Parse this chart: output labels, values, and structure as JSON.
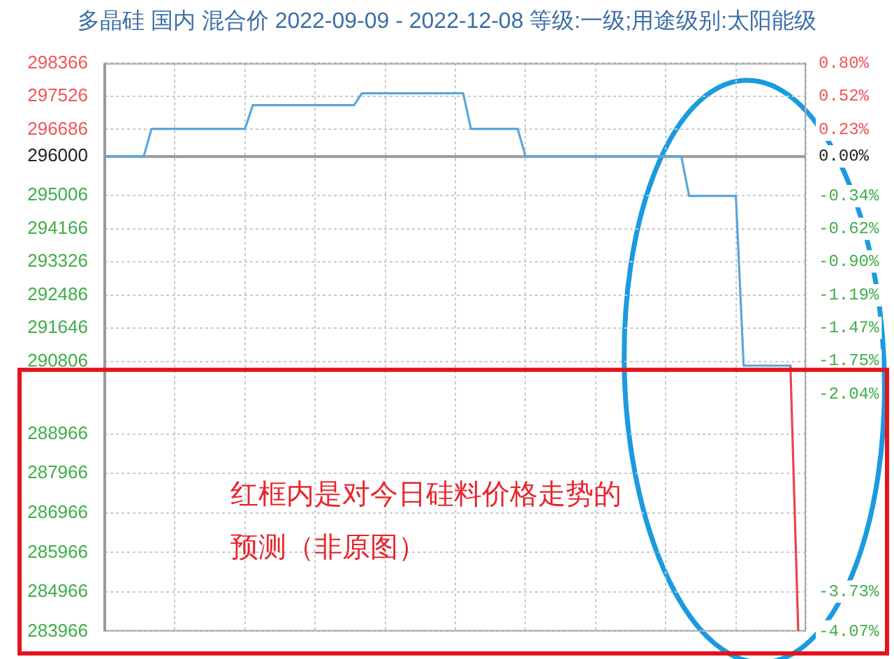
{
  "chart_data": {
    "type": "line",
    "title": "多晶硅 国内 混合价 2022-09-09 - 2022-12-08 等级:一级;用途级别:太阳能级",
    "categories": [
      null,
      null,
      null,
      null,
      null,
      null,
      null,
      null,
      null,
      null,
      null,
      null,
      null,
      null,
      null,
      null,
      null,
      null,
      null,
      null,
      null,
      null,
      null,
      null,
      null,
      null,
      null,
      null,
      null,
      null,
      null,
      null,
      null,
      null,
      null,
      null,
      null,
      null,
      null,
      null,
      null,
      null,
      null,
      null,
      null,
      null,
      null,
      null,
      null,
      null,
      null,
      null,
      null,
      null,
      null,
      null,
      null,
      null,
      null,
      null,
      null,
      null,
      null,
      null,
      null,
      null,
      null,
      null,
      null,
      null,
      null,
      null,
      null,
      null,
      null,
      null,
      null,
      null,
      null,
      null,
      null,
      null,
      null,
      null,
      null,
      null,
      null,
      null,
      null,
      null,
      null
    ],
    "series": [
      {
        "color": "#5aa6dc",
        "values": [
          296000,
          296000,
          296000,
          296000,
          296000,
          296000,
          296700,
          296700,
          296700,
          296700,
          296700,
          296700,
          296700,
          296700,
          296700,
          296700,
          296700,
          296700,
          296700,
          297300,
          297300,
          297300,
          297300,
          297300,
          297300,
          297300,
          297300,
          297300,
          297300,
          297300,
          297300,
          297300,
          297300,
          297600,
          297600,
          297600,
          297600,
          297600,
          297600,
          297600,
          297600,
          297600,
          297600,
          297600,
          297600,
          297600,
          297600,
          296700,
          296700,
          296700,
          296700,
          296700,
          296700,
          296700,
          296000,
          296000,
          296000,
          296000,
          296000,
          296000,
          296000,
          296000,
          296000,
          296000,
          296000,
          296000,
          296000,
          296000,
          296000,
          296000,
          296000,
          296000,
          296000,
          296000,
          296000,
          295000,
          295000,
          295000,
          295000,
          295000,
          295000,
          295000,
          290700,
          290700,
          290700,
          290700,
          290700,
          290700,
          290700,
          null,
          null
        ]
      },
      {
        "color": "#e8454a",
        "values": [
          null,
          null,
          null,
          null,
          null,
          null,
          null,
          null,
          null,
          null,
          null,
          null,
          null,
          null,
          null,
          null,
          null,
          null,
          null,
          null,
          null,
          null,
          null,
          null,
          null,
          null,
          null,
          null,
          null,
          null,
          null,
          null,
          null,
          null,
          null,
          null,
          null,
          null,
          null,
          null,
          null,
          null,
          null,
          null,
          null,
          null,
          null,
          null,
          null,
          null,
          null,
          null,
          null,
          null,
          null,
          null,
          null,
          null,
          null,
          null,
          null,
          null,
          null,
          null,
          null,
          null,
          null,
          null,
          null,
          null,
          null,
          null,
          null,
          null,
          null,
          null,
          null,
          null,
          null,
          null,
          null,
          null,
          null,
          null,
          null,
          null,
          null,
          null,
          290700,
          284000,
          null
        ]
      }
    ],
    "ylim": [
      283966,
      298366
    ],
    "yticks": [
      298366,
      297526,
      296686,
      296000,
      295006,
      294166,
      293326,
      292486,
      291646,
      290806,
      288966,
      287966,
      286966,
      285966,
      284966,
      283966
    ],
    "y2lim": [
      -4.07,
      0.8
    ],
    "y2ticks": [
      {
        "value": 0.8,
        "label": "0.80%"
      },
      {
        "value": 0.52,
        "label": "0.52%"
      },
      {
        "value": 0.23,
        "label": "0.23%"
      },
      {
        "value": 0,
        "label": "0.00%"
      },
      {
        "value": -0.34,
        "label": "-0.34%"
      },
      {
        "value": -0.62,
        "label": "-0.62%"
      },
      {
        "value": -0.9,
        "label": "-0.90%"
      },
      {
        "value": -1.19,
        "label": "-1.19%"
      },
      {
        "value": -1.47,
        "label": "-1.47%"
      },
      {
        "value": -1.75,
        "label": "-1.75%"
      },
      {
        "value": -2.04,
        "label": "-2.04%"
      },
      {
        "value": -3.73,
        "label": "-3.73%"
      },
      {
        "value": -4.07,
        "label": "-4.07%"
      }
    ],
    "ref_lines": [
      {
        "axis": "y",
        "value": 296000,
        "color": "#999999"
      }
    ],
    "grid": true,
    "annotations": [
      "红框内是对今日硅料价格走势的预测（非原图）"
    ]
  }
}
